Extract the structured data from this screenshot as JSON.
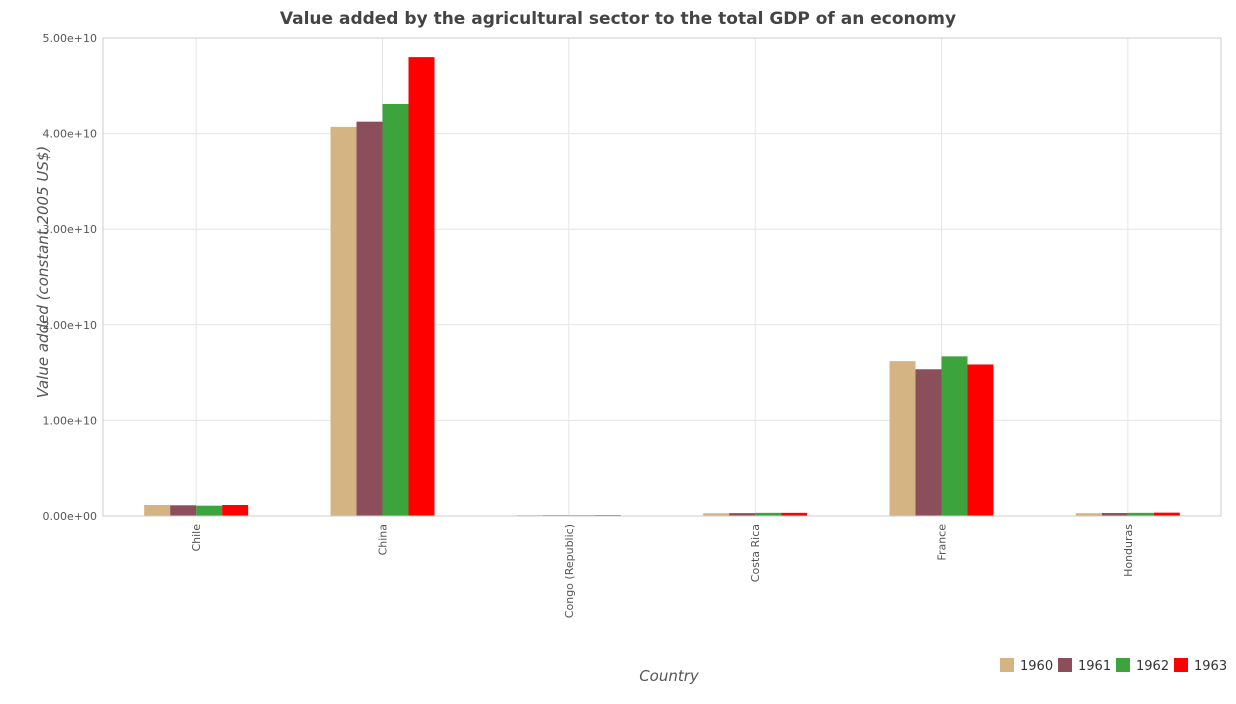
{
  "chart_data": {
    "type": "bar",
    "title": "Value added by the agricultural sector to the total GDP of an economy",
    "xlabel": "Country",
    "ylabel": "Value added (constant 2005 US$)",
    "ylim": [
      0,
      50000000000
    ],
    "yticks": [
      0,
      10000000000,
      20000000000,
      30000000000,
      40000000000,
      50000000000
    ],
    "ytick_labels": [
      "0.00e+00",
      "1.00e+10",
      "2.00e+10",
      "3.00e+10",
      "4.00e+10",
      "5.00e+10"
    ],
    "categories": [
      "Chile",
      "China",
      "Congo (Republic)",
      "Costa Rica",
      "France",
      "Honduras"
    ],
    "series": [
      {
        "name": "1960",
        "color": "#d4b483",
        "values": [
          1150000000,
          40700000000,
          90000000,
          290000000,
          16200000000,
          290000000
        ]
      },
      {
        "name": "1961",
        "color": "#8b4f5b",
        "values": [
          1120000000,
          41250000000,
          85000000,
          300000000,
          15350000000,
          310000000
        ]
      },
      {
        "name": "1962",
        "color": "#3da33d",
        "values": [
          1080000000,
          43100000000,
          88000000,
          330000000,
          16700000000,
          330000000
        ]
      },
      {
        "name": "1963",
        "color": "#ff0000",
        "values": [
          1150000000,
          48000000000,
          92000000,
          330000000,
          15850000000,
          350000000
        ]
      }
    ],
    "grid": true,
    "legend_position": "bottom-right"
  }
}
